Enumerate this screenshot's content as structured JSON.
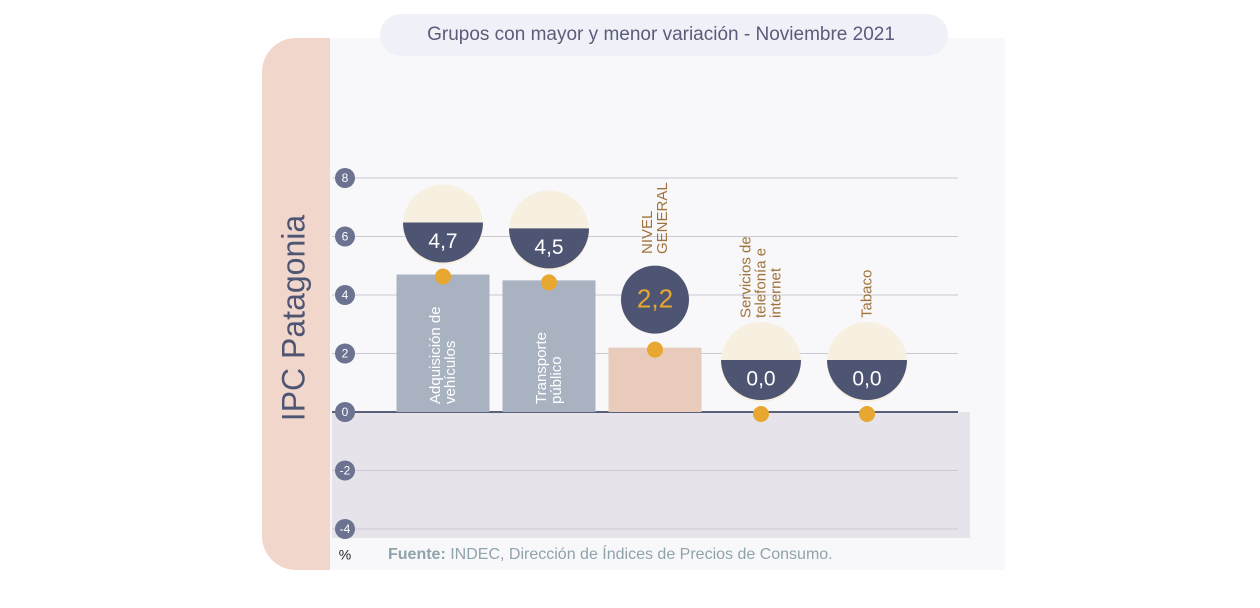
{
  "chart_data": {
    "type": "bar",
    "title": "Grupos con mayor y menor variación - Noviembre 2021",
    "side_label": "IPC Patagonia",
    "unit": "%",
    "source_label": "Fuente:",
    "source": "INDEC, Dirección de Índices de Precios de Consumo.",
    "categories": [
      "Adquisición de vehículos",
      "Transporte público",
      "NIVEL GENERAL",
      "Servicios de telefonía e internet",
      "Tabaco"
    ],
    "values": [
      4.7,
      4.5,
      2.2,
      0.0,
      0.0
    ],
    "value_labels": [
      "4,7",
      "4,5",
      "2,2",
      "0,0",
      "0,0"
    ],
    "colors": [
      "#a8b2c1",
      "#a8b2c1",
      "#e8cbbb",
      "#a8b2c1",
      "#a8b2c1"
    ],
    "ylim": [
      -4,
      8
    ],
    "yticks": [
      -4,
      -2,
      0,
      2,
      4,
      6,
      8
    ],
    "grid": true
  }
}
